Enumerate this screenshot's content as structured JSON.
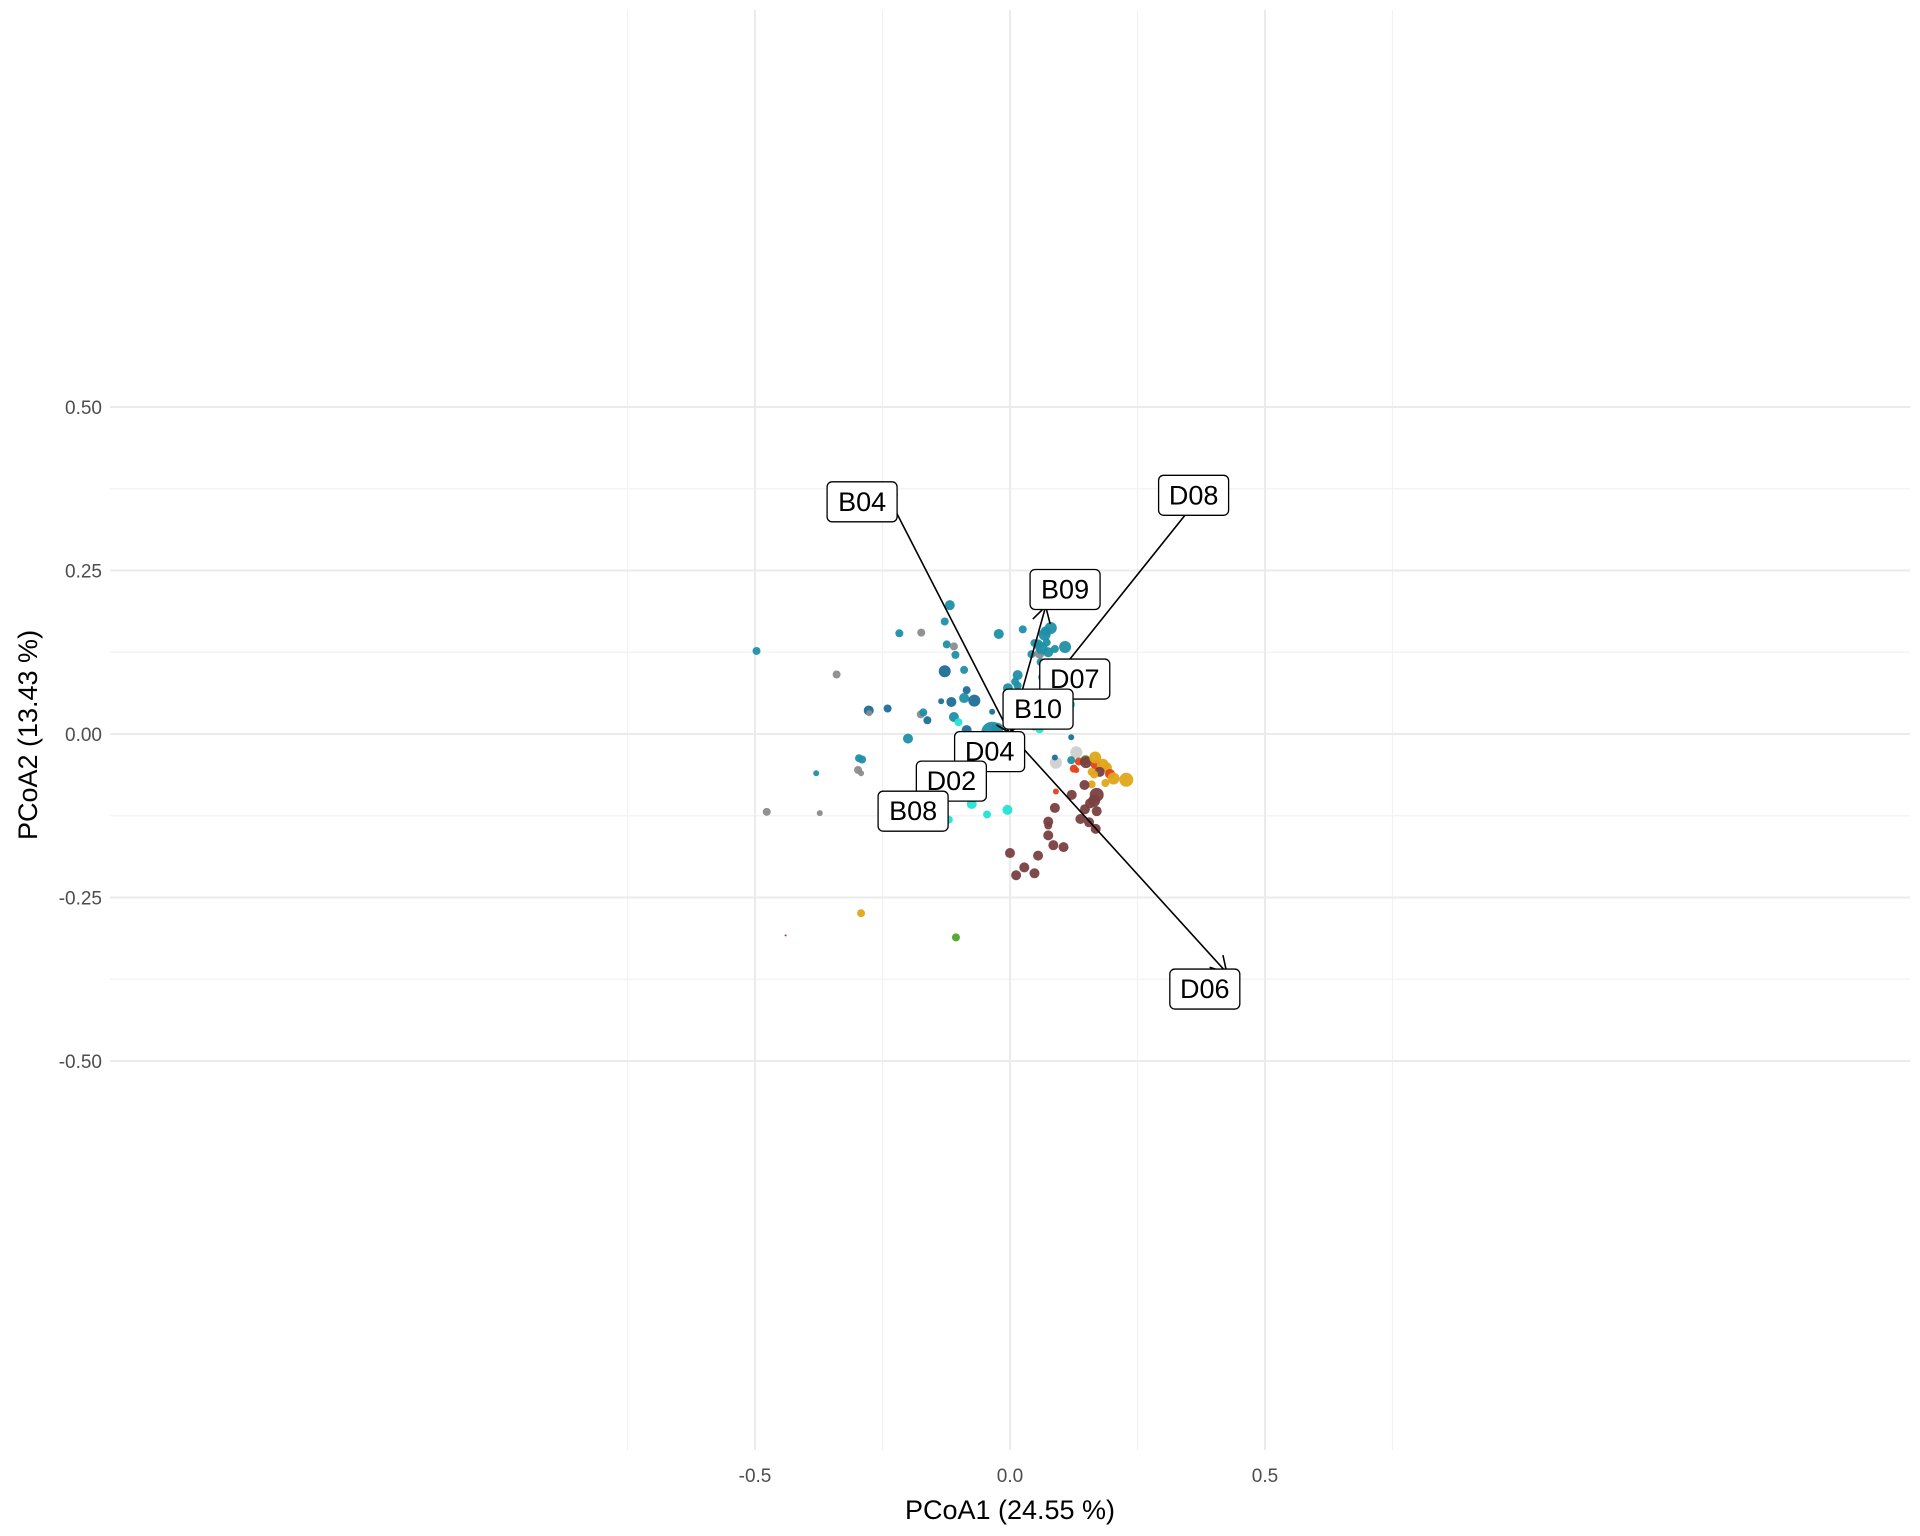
{
  "chart_data": {
    "type": "scatter",
    "xlabel": "PCoA1 (24.55 %)",
    "ylabel": "PCoA2 (13.43 %)",
    "xlim": [
      -0.88,
      0.88
    ],
    "ylim": [
      -0.55,
      0.55
    ],
    "x_ticks": [
      -0.5,
      0.0,
      0.5
    ],
    "x_tick_labels": [
      "-0.5",
      "0.0",
      "0.5"
    ],
    "y_ticks": [
      0.5,
      0.25,
      0.0,
      -0.25,
      -0.5
    ],
    "y_tick_labels": [
      "0.50",
      "0.25",
      "0.00",
      "-0.25",
      "-0.50"
    ],
    "x_minor": [
      -0.75,
      -0.25,
      0.25,
      0.75
    ],
    "y_minor": [
      0.375,
      0.125,
      -0.125,
      -0.375
    ],
    "grid": true,
    "colors": {
      "teal": "#1F8FA6",
      "darkblue": "#1F6E99",
      "cyan": "#22E3D5",
      "gray": "#8C8C8C",
      "lightgray": "#CFCFCF",
      "brown": "#7A4040",
      "gold": "#E0A61A",
      "red": "#E0431A",
      "green": "#4FA626"
    },
    "vectors": [
      {
        "label": "B04",
        "x": -0.25,
        "y": 0.38,
        "lx": -0.29,
        "ly": 0.355
      },
      {
        "label": "D08",
        "x": 0.4,
        "y": 0.39,
        "lx": 0.36,
        "ly": 0.365
      },
      {
        "label": "B09",
        "x": 0.07,
        "y": 0.195,
        "lx": 0.108,
        "ly": 0.221
      },
      {
        "label": "D07",
        "x": 0.095,
        "y": 0.095,
        "lx": 0.127,
        "ly": 0.084
      },
      {
        "label": "B10",
        "x": 0.004,
        "y": 0.0,
        "lx": 0.055,
        "ly": 0.038
      },
      {
        "label": "D04",
        "x": -0.008,
        "y": 0.0,
        "lx": -0.04,
        "ly": -0.027
      },
      {
        "label": "D02",
        "x": -0.115,
        "y": -0.072,
        "lx": -0.115,
        "ly": -0.072
      },
      {
        "label": "B08",
        "x": -0.19,
        "y": -0.118,
        "lx": -0.19,
        "ly": -0.118
      },
      {
        "label": "D06",
        "x": 0.425,
        "y": -0.365,
        "lx": 0.382,
        "ly": -0.39
      }
    ],
    "points": [
      {
        "x": -0.497,
        "y": 0.127,
        "c": "teal",
        "s": 4
      },
      {
        "x": -0.34,
        "y": 0.091,
        "c": "gray",
        "s": 4
      },
      {
        "x": -0.277,
        "y": 0.036,
        "c": "darkblue",
        "s": 5
      },
      {
        "x": -0.276,
        "y": 0.032,
        "c": "gray",
        "s": 3
      },
      {
        "x": -0.24,
        "y": 0.039,
        "c": "darkblue",
        "s": 4
      },
      {
        "x": -0.217,
        "y": 0.154,
        "c": "teal",
        "s": 4
      },
      {
        "x": -0.174,
        "y": 0.155,
        "c": "gray",
        "s": 4
      },
      {
        "x": -0.2,
        "y": -0.007,
        "c": "teal",
        "s": 5
      },
      {
        "x": -0.175,
        "y": 0.03,
        "c": "gray",
        "s": 4
      },
      {
        "x": -0.17,
        "y": 0.033,
        "c": "teal",
        "s": 4
      },
      {
        "x": -0.162,
        "y": 0.021,
        "c": "darkblue",
        "s": 4
      },
      {
        "x": -0.135,
        "y": 0.05,
        "c": "darkblue",
        "s": 3
      },
      {
        "x": -0.128,
        "y": 0.172,
        "c": "teal",
        "s": 4
      },
      {
        "x": -0.118,
        "y": 0.197,
        "c": "teal",
        "s": 5
      },
      {
        "x": -0.124,
        "y": 0.137,
        "c": "teal",
        "s": 4
      },
      {
        "x": -0.11,
        "y": 0.134,
        "c": "gray",
        "s": 4
      },
      {
        "x": -0.107,
        "y": 0.121,
        "c": "teal",
        "s": 4
      },
      {
        "x": -0.128,
        "y": 0.096,
        "c": "darkblue",
        "s": 6
      },
      {
        "x": -0.09,
        "y": 0.098,
        "c": "teal",
        "s": 4
      },
      {
        "x": -0.085,
        "y": 0.067,
        "c": "darkblue",
        "s": 4
      },
      {
        "x": -0.115,
        "y": 0.049,
        "c": "darkblue",
        "s": 5
      },
      {
        "x": -0.09,
        "y": 0.055,
        "c": "teal",
        "s": 5
      },
      {
        "x": -0.07,
        "y": 0.051,
        "c": "darkblue",
        "s": 6
      },
      {
        "x": -0.11,
        "y": 0.026,
        "c": "teal",
        "s": 5
      },
      {
        "x": -0.101,
        "y": 0.018,
        "c": "cyan",
        "s": 4
      },
      {
        "x": -0.085,
        "y": 0.006,
        "c": "darkblue",
        "s": 5
      },
      {
        "x": -0.035,
        "y": 0.002,
        "c": "teal",
        "s": 11
      },
      {
        "x": -0.025,
        "y": 0.008,
        "c": "teal",
        "s": 6
      },
      {
        "x": -0.02,
        "y": -0.002,
        "c": "teal",
        "s": 5
      },
      {
        "x": -0.012,
        "y": -0.006,
        "c": "darkblue",
        "s": 4
      },
      {
        "x": -0.008,
        "y": -0.011,
        "c": "teal",
        "s": 4
      },
      {
        "x": -0.075,
        "y": -0.012,
        "c": "cyan",
        "s": 4
      },
      {
        "x": -0.003,
        "y": -0.042,
        "c": "cyan",
        "s": 4
      },
      {
        "x": -0.003,
        "y": -0.05,
        "c": "cyan",
        "s": 3
      },
      {
        "x": -0.035,
        "y": 0.034,
        "c": "darkblue",
        "s": 3
      },
      {
        "x": -0.022,
        "y": 0.153,
        "c": "teal",
        "s": 5
      },
      {
        "x": -0.004,
        "y": 0.07,
        "c": "teal",
        "s": 5
      },
      {
        "x": -0.005,
        "y": 0.04,
        "c": "darkblue",
        "s": 3
      },
      {
        "x": 0.015,
        "y": 0.074,
        "c": "teal",
        "s": 4
      },
      {
        "x": 0.01,
        "y": 0.08,
        "c": "teal",
        "s": 4
      },
      {
        "x": 0.015,
        "y": 0.09,
        "c": "teal",
        "s": 5
      },
      {
        "x": 0.025,
        "y": 0.16,
        "c": "teal",
        "s": 4
      },
      {
        "x": 0.04,
        "y": 0.047,
        "c": "teal",
        "s": 4
      },
      {
        "x": 0.032,
        "y": 0.062,
        "c": "darkblue",
        "s": 4
      },
      {
        "x": 0.042,
        "y": 0.122,
        "c": "teal",
        "s": 4
      },
      {
        "x": 0.048,
        "y": 0.139,
        "c": "teal",
        "s": 4
      },
      {
        "x": 0.055,
        "y": 0.137,
        "c": "teal",
        "s": 5
      },
      {
        "x": 0.058,
        "y": 0.123,
        "c": "gray",
        "s": 5
      },
      {
        "x": 0.062,
        "y": 0.131,
        "c": "teal",
        "s": 6
      },
      {
        "x": 0.068,
        "y": 0.152,
        "c": "teal",
        "s": 6
      },
      {
        "x": 0.07,
        "y": 0.157,
        "c": "teal",
        "s": 5
      },
      {
        "x": 0.08,
        "y": 0.162,
        "c": "teal",
        "s": 6
      },
      {
        "x": 0.072,
        "y": 0.14,
        "c": "teal",
        "s": 4
      },
      {
        "x": 0.075,
        "y": 0.125,
        "c": "teal",
        "s": 5
      },
      {
        "x": 0.088,
        "y": 0.13,
        "c": "teal",
        "s": 4
      },
      {
        "x": 0.108,
        "y": 0.133,
        "c": "teal",
        "s": 6
      },
      {
        "x": 0.06,
        "y": 0.11,
        "c": "teal",
        "s": 4
      },
      {
        "x": 0.07,
        "y": 0.1,
        "c": "teal",
        "s": 4
      },
      {
        "x": 0.065,
        "y": 0.087,
        "c": "teal",
        "s": 5
      },
      {
        "x": 0.075,
        "y": 0.083,
        "c": "teal",
        "s": 5
      },
      {
        "x": 0.085,
        "y": 0.088,
        "c": "teal",
        "s": 5
      },
      {
        "x": 0.09,
        "y": 0.08,
        "c": "teal",
        "s": 4
      },
      {
        "x": 0.098,
        "y": 0.092,
        "c": "teal",
        "s": 6
      },
      {
        "x": 0.072,
        "y": 0.07,
        "c": "teal",
        "s": 4
      },
      {
        "x": 0.082,
        "y": 0.067,
        "c": "teal",
        "s": 5
      },
      {
        "x": 0.092,
        "y": 0.05,
        "c": "gray",
        "s": 4
      },
      {
        "x": 0.103,
        "y": 0.05,
        "c": "teal",
        "s": 6
      },
      {
        "x": 0.12,
        "y": 0.045,
        "c": "cyan",
        "s": 4
      },
      {
        "x": 0.047,
        "y": 0.013,
        "c": "gray",
        "s": 5
      },
      {
        "x": 0.058,
        "y": 0.007,
        "c": "cyan",
        "s": 4
      },
      {
        "x": 0.12,
        "y": -0.005,
        "c": "darkblue",
        "s": 3
      },
      {
        "x": -0.12,
        "y": -0.131,
        "c": "cyan",
        "s": 4
      },
      {
        "x": -0.075,
        "y": -0.107,
        "c": "cyan",
        "s": 5
      },
      {
        "x": -0.045,
        "y": -0.123,
        "c": "cyan",
        "s": 4
      },
      {
        "x": -0.005,
        "y": -0.116,
        "c": "cyan",
        "s": 5
      },
      {
        "x": -0.38,
        "y": -0.06,
        "c": "teal",
        "s": 3
      },
      {
        "x": -0.296,
        "y": -0.037,
        "c": "teal",
        "s": 4
      },
      {
        "x": -0.29,
        "y": -0.039,
        "c": "teal",
        "s": 4
      },
      {
        "x": -0.298,
        "y": -0.055,
        "c": "gray",
        "s": 4
      },
      {
        "x": -0.292,
        "y": -0.06,
        "c": "gray",
        "s": 3
      },
      {
        "x": -0.477,
        "y": -0.119,
        "c": "gray",
        "s": 4
      },
      {
        "x": -0.373,
        "y": -0.121,
        "c": "gray",
        "s": 3
      },
      {
        "x": -0.44,
        "y": -0.308,
        "c": "brown",
        "s": 1
      },
      {
        "x": -0.292,
        "y": -0.274,
        "c": "gold",
        "s": 4
      },
      {
        "x": -0.106,
        "y": -0.311,
        "c": "green",
        "s": 4
      },
      {
        "x": 0.09,
        "y": -0.044,
        "c": "lightgray",
        "s": 6
      },
      {
        "x": 0.13,
        "y": -0.028,
        "c": "lightgray",
        "s": 6
      },
      {
        "x": 0.088,
        "y": -0.036,
        "c": "darkblue",
        "s": 3
      },
      {
        "x": 0.12,
        "y": -0.04,
        "c": "teal",
        "s": 4
      },
      {
        "x": 0.135,
        "y": -0.042,
        "c": "red",
        "s": 4
      },
      {
        "x": 0.125,
        "y": -0.053,
        "c": "red",
        "s": 4
      },
      {
        "x": 0.13,
        "y": -0.055,
        "c": "red",
        "s": 3
      },
      {
        "x": 0.148,
        "y": -0.04,
        "c": "green",
        "s": 5
      },
      {
        "x": 0.149,
        "y": -0.043,
        "c": "brown",
        "s": 6
      },
      {
        "x": 0.168,
        "y": -0.047,
        "c": "red",
        "s": 5
      },
      {
        "x": 0.167,
        "y": -0.036,
        "c": "gold",
        "s": 6
      },
      {
        "x": 0.182,
        "y": -0.047,
        "c": "gold",
        "s": 6
      },
      {
        "x": 0.19,
        "y": -0.051,
        "c": "gold",
        "s": 5
      },
      {
        "x": 0.16,
        "y": -0.058,
        "c": "gold",
        "s": 4
      },
      {
        "x": 0.176,
        "y": -0.058,
        "c": "brown",
        "s": 5
      },
      {
        "x": 0.165,
        "y": -0.062,
        "c": "gold",
        "s": 4
      },
      {
        "x": 0.196,
        "y": -0.061,
        "c": "red",
        "s": 5
      },
      {
        "x": 0.203,
        "y": -0.068,
        "c": "gold",
        "s": 6
      },
      {
        "x": 0.228,
        "y": -0.07,
        "c": "gold",
        "s": 7
      },
      {
        "x": 0.187,
        "y": -0.075,
        "c": "gold",
        "s": 4
      },
      {
        "x": 0.16,
        "y": -0.077,
        "c": "gold",
        "s": 4
      },
      {
        "x": 0.146,
        "y": -0.078,
        "c": "brown",
        "s": 5
      },
      {
        "x": 0.09,
        "y": -0.088,
        "c": "red",
        "s": 3
      },
      {
        "x": 0.121,
        "y": -0.093,
        "c": "brown",
        "s": 5
      },
      {
        "x": 0.17,
        "y": -0.093,
        "c": "brown",
        "s": 7
      },
      {
        "x": 0.165,
        "y": -0.102,
        "c": "brown",
        "s": 6
      },
      {
        "x": 0.157,
        "y": -0.106,
        "c": "brown",
        "s": 5
      },
      {
        "x": 0.088,
        "y": -0.113,
        "c": "brown",
        "s": 5
      },
      {
        "x": 0.147,
        "y": -0.115,
        "c": "brown",
        "s": 5
      },
      {
        "x": 0.17,
        "y": -0.118,
        "c": "brown",
        "s": 5
      },
      {
        "x": 0.138,
        "y": -0.13,
        "c": "brown",
        "s": 5
      },
      {
        "x": 0.155,
        "y": -0.135,
        "c": "brown",
        "s": 5
      },
      {
        "x": 0.075,
        "y": -0.134,
        "c": "brown",
        "s": 5
      },
      {
        "x": 0.075,
        "y": -0.14,
        "c": "brown",
        "s": 4
      },
      {
        "x": 0.168,
        "y": -0.145,
        "c": "brown",
        "s": 5
      },
      {
        "x": 0.075,
        "y": -0.155,
        "c": "brown",
        "s": 5
      },
      {
        "x": 0.085,
        "y": -0.17,
        "c": "brown",
        "s": 5
      },
      {
        "x": 0.105,
        "y": -0.173,
        "c": "brown",
        "s": 5
      },
      {
        "x": 0.055,
        "y": -0.186,
        "c": "brown",
        "s": 5
      },
      {
        "x": 0.0,
        "y": -0.182,
        "c": "brown",
        "s": 5
      },
      {
        "x": 0.028,
        "y": -0.204,
        "c": "brown",
        "s": 5
      },
      {
        "x": 0.012,
        "y": -0.216,
        "c": "brown",
        "s": 5
      },
      {
        "x": 0.048,
        "y": -0.213,
        "c": "brown",
        "s": 5
      }
    ]
  }
}
